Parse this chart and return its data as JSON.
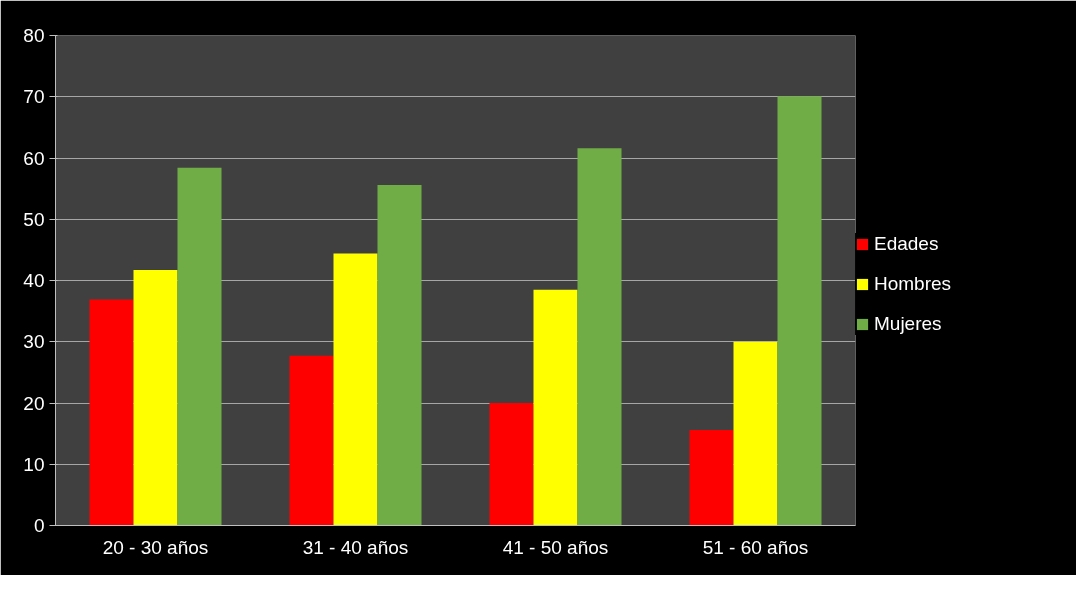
{
  "chart_data": {
    "type": "bar",
    "categories": [
      "20 - 30 años",
      "31 - 40 años",
      "41 - 50 años",
      "51 - 60 años"
    ],
    "series": [
      {
        "name": "Edades",
        "color": "#ff0000",
        "values": [
          36.9,
          27.7,
          20.0,
          15.6
        ]
      },
      {
        "name": "Hombres",
        "color": "#ffff00",
        "values": [
          41.7,
          44.4,
          38.5,
          30.0
        ]
      },
      {
        "name": "Mujeres",
        "color": "#70ad47",
        "values": [
          58.4,
          55.6,
          61.6,
          70.1
        ]
      }
    ],
    "ylim": [
      0,
      80
    ],
    "yticks": [
      0,
      10,
      20,
      30,
      40,
      50,
      60,
      70,
      80
    ],
    "grid": "y",
    "legend": "right"
  }
}
